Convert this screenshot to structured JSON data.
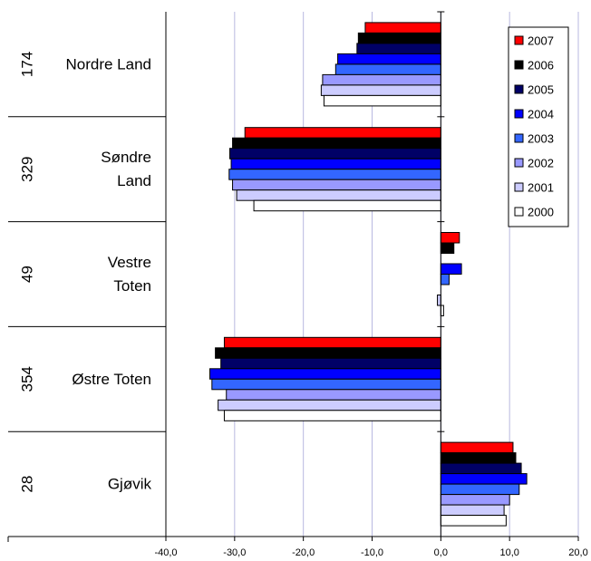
{
  "chart_data": {
    "type": "bar",
    "orientation": "horizontal",
    "categories": [
      {
        "code": "174",
        "name": [
          "Nordre Land"
        ]
      },
      {
        "code": "329",
        "name": [
          "Søndre",
          "Land"
        ]
      },
      {
        "code": "49",
        "name": [
          "Vestre",
          "Toten"
        ]
      },
      {
        "code": "354",
        "name": [
          "Østre Toten"
        ]
      },
      {
        "code": "28",
        "name": [
          "Gjøvik"
        ]
      }
    ],
    "series": [
      {
        "name": "2007",
        "color": "#ff0000",
        "values": [
          -11.0,
          -28.5,
          2.7,
          -31.5,
          10.5
        ]
      },
      {
        "name": "2006",
        "color": "#000000",
        "values": [
          -12.0,
          -30.3,
          1.9,
          -32.8,
          10.9
        ]
      },
      {
        "name": "2005",
        "color": "#000066",
        "values": [
          -12.2,
          -30.7,
          0.0,
          -32.0,
          11.7
        ]
      },
      {
        "name": "2004",
        "color": "#0000ff",
        "values": [
          -15.0,
          -30.5,
          3.0,
          -33.6,
          12.5
        ]
      },
      {
        "name": "2003",
        "color": "#3366ff",
        "values": [
          -15.3,
          -30.8,
          1.2,
          -33.3,
          11.4
        ]
      },
      {
        "name": "2002",
        "color": "#9999ff",
        "values": [
          -17.2,
          -30.3,
          0.0,
          -31.2,
          10.0
        ]
      },
      {
        "name": "2001",
        "color": "#ccccff",
        "values": [
          -17.4,
          -29.7,
          -0.5,
          -32.4,
          9.2
        ]
      },
      {
        "name": "2000",
        "color": "#ffffff",
        "values": [
          -17.0,
          -27.2,
          0.4,
          -31.5,
          9.5
        ]
      }
    ],
    "xlim": [
      -40,
      20
    ],
    "xticks": [
      "-40,0",
      "-30,0",
      "-20,0",
      "-10,0",
      "0,0",
      "10,0",
      "20,0"
    ],
    "xtick_values": [
      -40,
      -30,
      -20,
      -10,
      0,
      10,
      20
    ],
    "grid": "vertical",
    "legend_position": "top-right"
  }
}
